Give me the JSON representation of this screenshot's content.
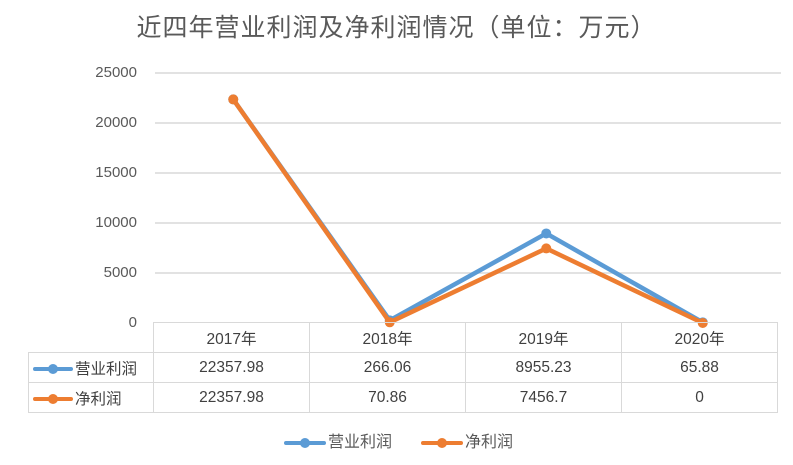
{
  "chart_data": {
    "type": "line",
    "title": "近四年营业利润及净利润情况（单位：万元）",
    "categories": [
      "2017年",
      "2018年",
      "2019年",
      "2020年"
    ],
    "series": [
      {
        "name": "营业利润",
        "color": "#5b9bd5",
        "values": [
          22357.98,
          266.06,
          8955.23,
          65.88
        ]
      },
      {
        "name": "净利润",
        "color": "#ed7d31",
        "values": [
          22357.98,
          70.86,
          7456.7,
          0
        ]
      }
    ],
    "xlabel": "",
    "ylabel": "",
    "ylim": [
      0,
      25000
    ],
    "yticks": [
      "25000",
      "20000",
      "15000",
      "10000",
      "5000",
      "0"
    ],
    "grid": true,
    "legend_position": "bottom",
    "data_table": true
  },
  "table": {
    "headers": [
      "2017年",
      "2018年",
      "2019年",
      "2020年"
    ],
    "rows": [
      {
        "label": "营业利润",
        "cells": [
          "22357.98",
          "266.06",
          "8955.23",
          "65.88"
        ]
      },
      {
        "label": "净利润",
        "cells": [
          "22357.98",
          "70.86",
          "7456.7",
          "0"
        ]
      }
    ]
  },
  "legend": [
    "营业利润",
    "净利润"
  ]
}
